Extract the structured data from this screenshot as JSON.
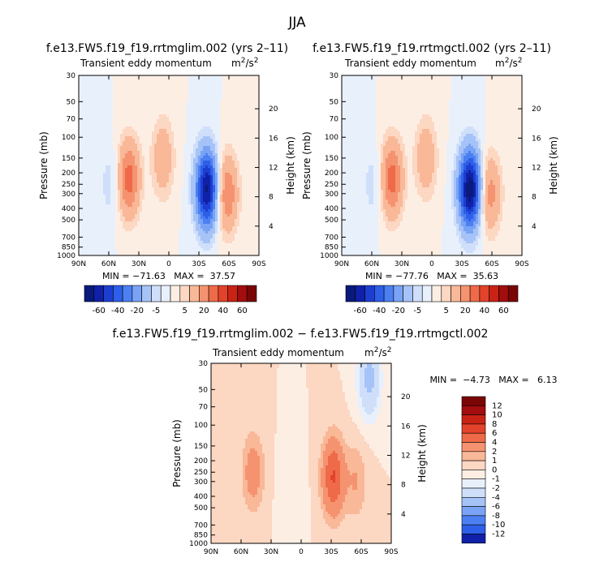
{
  "figure": {
    "title": "JJA"
  },
  "colorbar_top": {
    "labels": [
      "-60",
      "-40",
      "-20",
      "-5",
      "5",
      "20",
      "40",
      "60"
    ],
    "colors": [
      "#0a1a7a",
      "#1020a8",
      "#1c3ed0",
      "#2e5fe8",
      "#4c80f2",
      "#7aa3f5",
      "#a6c3f7",
      "#cfdffa",
      "#e8f0fc",
      "#fdeee4",
      "#fcd7c2",
      "#f9b897",
      "#f59370",
      "#ef6a48",
      "#e2432a",
      "#c92316",
      "#a20d0d",
      "#7a0505"
    ]
  },
  "colorbar_diff": {
    "labels": [
      "12",
      "10",
      "8",
      "6",
      "4",
      "2",
      "1",
      "0",
      "-1",
      "-2",
      "-4",
      "-6",
      "-8",
      "-10",
      "-12"
    ],
    "colors": [
      "#7a0505",
      "#a20d0d",
      "#c92316",
      "#e2432a",
      "#ef6a48",
      "#f59370",
      "#f9b897",
      "#fcd7c2",
      "#fdeee4",
      "#e8f0fc",
      "#cfdffa",
      "#a6c3f7",
      "#7aa3f5",
      "#4c80f2",
      "#2e5fe8",
      "#1020a8"
    ]
  },
  "chart_data": [
    {
      "type": "heatmap",
      "title": "f.e13.FW5.f19_f19.rrtmglim.002 (yrs 2–11)",
      "subtitle": "Transient eddy momentum",
      "units": "m",
      "units_sup": "2",
      "units_tail": "/s",
      "units_sup2": "2",
      "xlabel": "",
      "ylabel": "Pressure (mb)",
      "y2label": "Height (km)",
      "x_ticks": [
        "90N",
        "60N",
        "30N",
        "0",
        "30S",
        "60S",
        "90S"
      ],
      "y_ticks": [
        "30",
        "50",
        "70",
        "100",
        "150",
        "200",
        "250",
        "300",
        "400",
        "500",
        "700",
        "850",
        "1000"
      ],
      "y2_ticks": [
        "20",
        "16",
        "12",
        "8",
        "4"
      ],
      "stats": "MIN = −71.63   MAX =  37.57",
      "contour_levels": [
        -60,
        -40,
        -20,
        -5,
        5,
        20,
        40,
        60
      ],
      "features": [
        {
          "lat": 40,
          "p": 225,
          "value": 35
        },
        {
          "lat": 6,
          "p": 150,
          "value": 18
        },
        {
          "lat": -38,
          "p": 275,
          "value": -71.63
        },
        {
          "lat": -58,
          "p": 300,
          "value": 30
        },
        {
          "lat": 58,
          "p": 250,
          "value": -8
        }
      ]
    },
    {
      "type": "heatmap",
      "title": "f.e13.FW5.f19_f19.rrtmgctl.002 (yrs 2–11)",
      "subtitle": "Transient eddy momentum",
      "units": "m",
      "units_sup": "2",
      "units_tail": "/s",
      "units_sup2": "2",
      "xlabel": "",
      "ylabel": "Pressure (mb)",
      "y2label": "Height (km)",
      "x_ticks": [
        "90N",
        "60N",
        "30N",
        "0",
        "30S",
        "60S",
        "90S"
      ],
      "y_ticks": [
        "30",
        "50",
        "70",
        "100",
        "150",
        "200",
        "250",
        "300",
        "400",
        "500",
        "700",
        "850",
        "1000"
      ],
      "y2_ticks": [
        "20",
        "16",
        "12",
        "8",
        "4"
      ],
      "stats": "MIN = −77.76   MAX =  35.63",
      "contour_levels": [
        -60,
        -40,
        -20,
        -5,
        5,
        20,
        40,
        60
      ],
      "features": [
        {
          "lat": 40,
          "p": 225,
          "value": 35
        },
        {
          "lat": 6,
          "p": 150,
          "value": 18
        },
        {
          "lat": -38,
          "p": 275,
          "value": -77.76
        },
        {
          "lat": -58,
          "p": 300,
          "value": 25
        },
        {
          "lat": 58,
          "p": 250,
          "value": -8
        }
      ]
    },
    {
      "type": "heatmap",
      "title": "f.e13.FW5.f19_f19.rrtmglim.002 − f.e13.FW5.f19_f19.rrtmgctl.002",
      "subtitle": "Transient eddy momentum",
      "units": "m",
      "units_sup": "2",
      "units_tail": "/s",
      "units_sup2": "2",
      "xlabel": "",
      "ylabel": "Pressure (mb)",
      "y2label": "Height (km)",
      "x_ticks": [
        "90N",
        "60N",
        "30N",
        "0",
        "30S",
        "60S",
        "90S"
      ],
      "y_ticks": [
        "30",
        "50",
        "70",
        "100",
        "150",
        "200",
        "250",
        "300",
        "400",
        "500",
        "700",
        "850",
        "1000"
      ],
      "y2_ticks": [
        "20",
        "16",
        "12",
        "8",
        "4"
      ],
      "stats": "MIN =  −4.73   MAX =   6.13",
      "contour_levels": [
        -12,
        -10,
        -8,
        -6,
        -4,
        -2,
        -1,
        0,
        1,
        2,
        4,
        6,
        8,
        10,
        12
      ],
      "features": [
        {
          "lat": 48,
          "p": 250,
          "value": 3
        },
        {
          "lat": -32,
          "p": 275,
          "value": 6.13
        },
        {
          "lat": -55,
          "p": 300,
          "value": 2
        },
        {
          "lat": -68,
          "p": 40,
          "value": -4.73
        },
        {
          "lat": 10,
          "p": 350,
          "value": -1
        }
      ]
    }
  ]
}
